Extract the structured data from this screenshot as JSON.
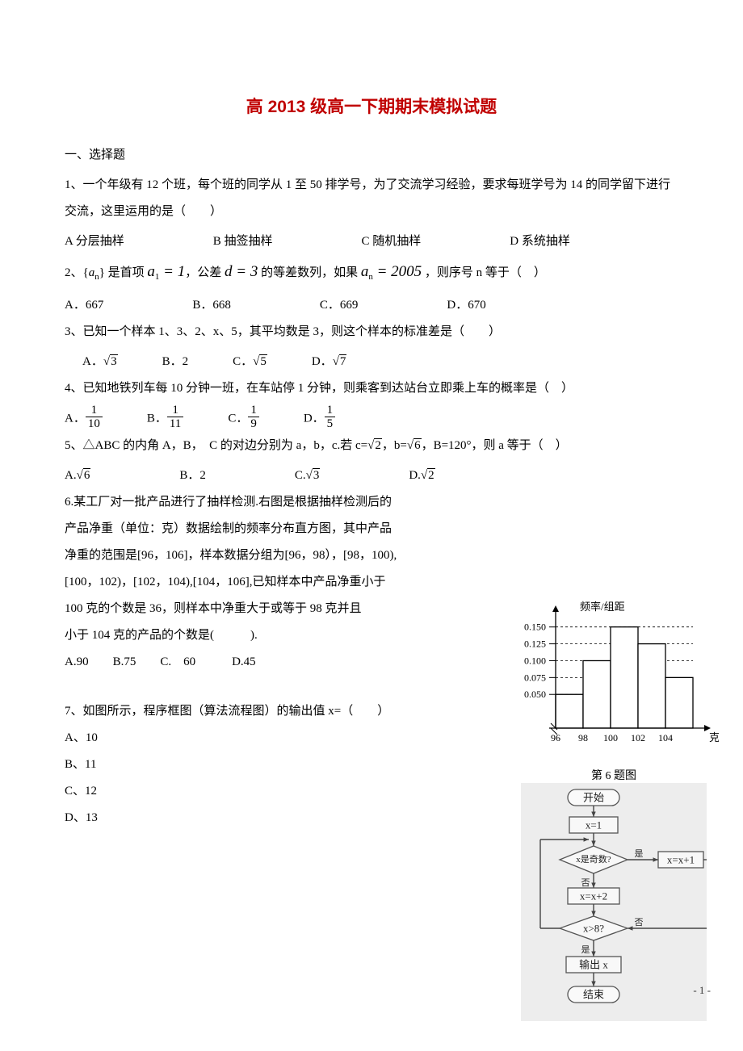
{
  "title": "高 2013 级高一下期期末模拟试题",
  "section1": "一、选择题",
  "q1": {
    "text": "1、一个年级有 12 个班，每个班的同学从 1 至 50 排学号，为了交流学习经验，要求每班学号为 14 的同学留下进行交流，这里运用的是（　　）",
    "A": "A 分层抽样",
    "B": "B 抽签抽样",
    "C": "C 随机抽样",
    "D": "D 系统抽样"
  },
  "q2": {
    "pre": "2、{",
    "an": "a",
    "nsub": "n",
    "mid": "} 是首项 ",
    "a1": "a",
    "one": "1",
    "eq1": " = 1",
    "mid2": "，公差 ",
    "d": "d",
    "eq3": " = 3",
    "post": " 的等差数列，如果 ",
    "an2": "a",
    "nsub2": "n",
    "eq2005": " = 2005",
    "tail": " ，则序号 n 等于（　）",
    "A": "A．667",
    "B": "B．668",
    "C": "C．669",
    "D": "D．670"
  },
  "q3": {
    "text": "3、已知一个样本 1、3、2、x、5，其平均数是 3，则这个样本的标准差是（　　）",
    "A": "A．",
    "Av": "3",
    "B": "B．2",
    "C": "C．",
    "Cv": "5",
    "D": "D．",
    "Dv": "7"
  },
  "q4": {
    "text": "4、已知地铁列车每 10 分钟一班，在车站停 1 分钟，则乘客到达站台立即乘上车的概率是（　）",
    "A": "A．",
    "An": "1",
    "Ad": "10",
    "B": "B．",
    "Bn": "1",
    "Bd": "11",
    "C": "C．",
    "Cn": "1",
    "Cd": "9",
    "D": "D．",
    "Dn": "1",
    "Dd": "5"
  },
  "q5": {
    "text": "5、△ABC 的内角 A，B，　C 的对边分别为 a，b，c.若 c=",
    "cval": "2",
    "mid": "，b=",
    "bval": "6",
    "post": "，B=120°，则 a 等于（　）",
    "A": "A.",
    "Av": "6",
    "B": "B．2",
    "C": "C.",
    "Cv": "3",
    "D": "D.",
    "Dv": "2"
  },
  "q6": {
    "l1": "6.某工厂对一批产品进行了抽样检测.右图是根据抽样检测后的",
    "l2": "产品净重（单位：克）数据绘制的频率分布直方图，其中产品",
    "l3": "净重的范围是[96，106]，样本数据分组为[96，98），[98，100),",
    "l4": "[100，102)，[102，104),[104，106],已知样本中产品净重小于",
    "l5": "100 克的个数是 36，则样本中净重大于或等于 98 克并且",
    "l6": "小于 104 克的产品的个数是(　　　).",
    "opts": "A.90　　B.75　　C.　60　　　D.45"
  },
  "q7": {
    "text": "7、如图所示，程序框图（算法流程图）的输出值 x=（　　）",
    "A": "A、10",
    "B": "B、11",
    "C": "C、12",
    "D": "D、13"
  },
  "hist": {
    "ylabel": "频率/组距",
    "xlabel": "克",
    "caption": "第 6 题图",
    "ticks_y": [
      "0.050",
      "0.075",
      "0.100",
      "0.125",
      "0.150"
    ],
    "ticks_x": [
      "96",
      "98",
      "100",
      "102",
      "104"
    ],
    "bars": [
      0.05,
      0.1,
      0.15,
      0.125,
      0.075
    ],
    "bar_color": "#ffffff",
    "border": "#000000",
    "grid": "#000000",
    "ymax": 0.17
  },
  "flow": {
    "start": "开始",
    "s1": "x=1",
    "cond1": "x是奇数?",
    "yes": "是",
    "no": "否",
    "inc1": "x=x+1",
    "inc2": "x=x+2",
    "cond2": "x>8?",
    "out": "输出 x",
    "end": "结束"
  },
  "page": "- 1 -"
}
